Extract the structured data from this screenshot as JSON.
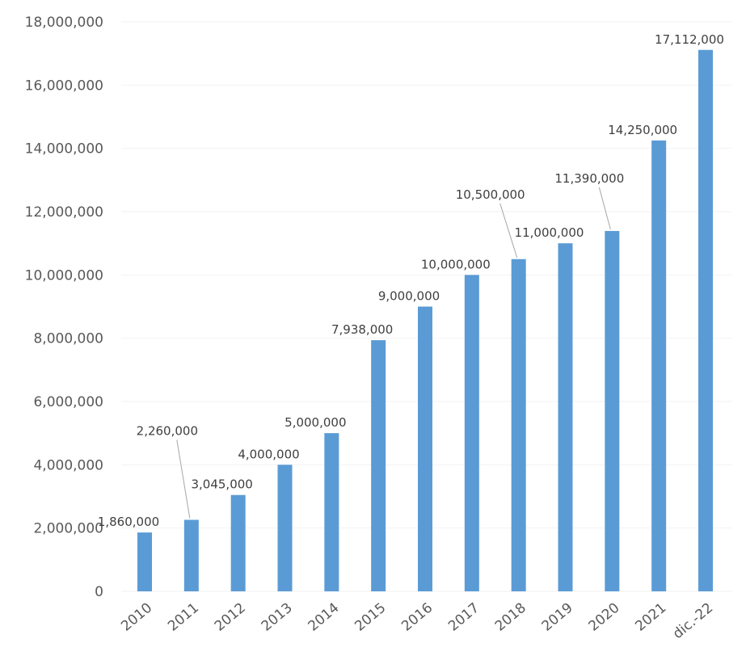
{
  "chart_data": {
    "type": "bar",
    "title": "",
    "xlabel": "",
    "ylabel": "",
    "categories": [
      "2010",
      "2011",
      "2012",
      "2013",
      "2014",
      "2015",
      "2016",
      "2017",
      "2018",
      "2019",
      "2020",
      "2021",
      "dic.-22"
    ],
    "values": [
      1860000,
      2260000,
      3045000,
      4000000,
      5000000,
      7938000,
      9000000,
      10000000,
      10500000,
      11000000,
      11390000,
      14250000,
      17112000
    ],
    "data_labels": [
      "1,860,000",
      "2,260,000",
      "3,045,000",
      "4,000,000",
      "5,000,000",
      "7,938,000",
      "9,000,000",
      "10,000,000",
      "10,500,000",
      "11,000,000",
      "11,390,000",
      "14,250,000",
      "17,112,000"
    ],
    "ylim": [
      0,
      18000000
    ],
    "yticks": [
      "0",
      "2,000,000",
      "4,000,000",
      "6,000,000",
      "8,000,000",
      "10,000,000",
      "12,000,000",
      "14,000,000",
      "16,000,000",
      "18,000,000"
    ],
    "grid": true,
    "legend": "none",
    "bar_color": "#5b9bd5"
  }
}
